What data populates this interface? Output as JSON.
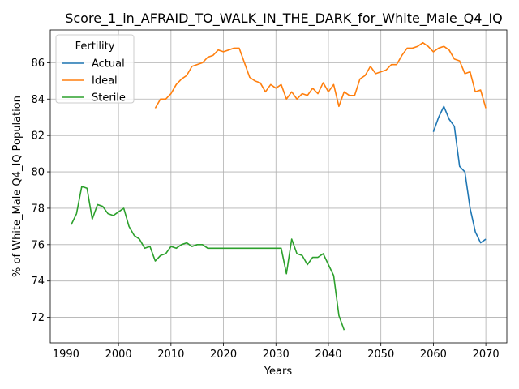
{
  "chart_data": {
    "type": "line",
    "title": "Score_1_in_AFRAID_TO_WALK_IN_THE_DARK_for_White_Male_Q4_IQ",
    "xlabel": "Years",
    "ylabel": "% of White_Male Q4_IQ Population",
    "xlim": [
      1987,
      2074
    ],
    "ylim": [
      70.6,
      87.8
    ],
    "xticks": [
      1990,
      2000,
      2010,
      2020,
      2030,
      2040,
      2050,
      2060,
      2070
    ],
    "yticks": [
      72,
      74,
      76,
      78,
      80,
      82,
      84,
      86
    ],
    "grid": true,
    "legend": {
      "title": "Fertility",
      "placement": "top-left"
    },
    "series": [
      {
        "name": "Actual",
        "color": "#1f77b4",
        "x": [
          2060,
          2061,
          2062,
          2063,
          2064,
          2065,
          2066,
          2067,
          2068,
          2069,
          2070
        ],
        "y": [
          82.2,
          83.0,
          83.6,
          82.9,
          82.5,
          80.3,
          80.0,
          78.0,
          76.7,
          76.1,
          76.3
        ]
      },
      {
        "name": "Ideal",
        "color": "#ff7f0e",
        "x": [
          2007,
          2008,
          2009,
          2010,
          2011,
          2012,
          2013,
          2014,
          2015,
          2016,
          2017,
          2018,
          2019,
          2020,
          2021,
          2022,
          2023,
          2024,
          2025,
          2026,
          2027,
          2028,
          2029,
          2030,
          2031,
          2032,
          2033,
          2034,
          2035,
          2036,
          2037,
          2038,
          2039,
          2040,
          2041,
          2042,
          2043,
          2044,
          2045,
          2046,
          2047,
          2048,
          2049,
          2050,
          2051,
          2052,
          2053,
          2054,
          2055,
          2056,
          2057,
          2058,
          2059,
          2060,
          2061,
          2062,
          2063,
          2064,
          2065,
          2066,
          2067,
          2068,
          2069,
          2070
        ],
        "y": [
          83.5,
          84.0,
          84.0,
          84.3,
          84.8,
          85.1,
          85.3,
          85.8,
          85.9,
          86.0,
          86.3,
          86.4,
          86.7,
          86.6,
          86.7,
          86.8,
          86.8,
          86.0,
          85.2,
          85.0,
          84.9,
          84.4,
          84.8,
          84.6,
          84.8,
          84.0,
          84.4,
          84.0,
          84.3,
          84.2,
          84.6,
          84.3,
          84.9,
          84.4,
          84.8,
          83.6,
          84.4,
          84.2,
          84.2,
          85.1,
          85.3,
          85.8,
          85.4,
          85.5,
          85.6,
          85.9,
          85.9,
          86.4,
          86.8,
          86.8,
          86.9,
          87.1,
          86.9,
          86.6,
          86.8,
          86.9,
          86.7,
          86.2,
          86.1,
          85.4,
          85.5,
          84.4,
          84.5,
          83.5
        ]
      },
      {
        "name": "Sterile",
        "color": "#2ca02c",
        "x": [
          1991,
          1992,
          1993,
          1994,
          1995,
          1996,
          1997,
          1998,
          1999,
          2000,
          2001,
          2002,
          2003,
          2004,
          2005,
          2006,
          2007,
          2008,
          2009,
          2010,
          2011,
          2012,
          2013,
          2014,
          2015,
          2016,
          2017,
          2018,
          2019,
          2020,
          2021,
          2022,
          2023,
          2024,
          2025,
          2026,
          2027,
          2028,
          2029,
          2030,
          2031,
          2032,
          2033,
          2034,
          2035,
          2036,
          2037,
          2038,
          2039,
          2040,
          2041,
          2042,
          2043
        ],
        "y": [
          77.1,
          77.7,
          79.2,
          79.1,
          77.4,
          78.2,
          78.1,
          77.7,
          77.6,
          77.8,
          78.0,
          77.0,
          76.5,
          76.3,
          75.8,
          75.9,
          75.1,
          75.4,
          75.5,
          75.9,
          75.8,
          76.0,
          76.1,
          75.9,
          76.0,
          76.0,
          75.8,
          75.8,
          75.8,
          75.8,
          75.8,
          75.8,
          75.8,
          75.8,
          75.8,
          75.8,
          75.8,
          75.8,
          75.8,
          75.8,
          75.8,
          74.4,
          76.3,
          75.5,
          75.4,
          74.9,
          75.3,
          75.3,
          75.5,
          74.9,
          74.3,
          72.1,
          71.3
        ]
      }
    ]
  }
}
